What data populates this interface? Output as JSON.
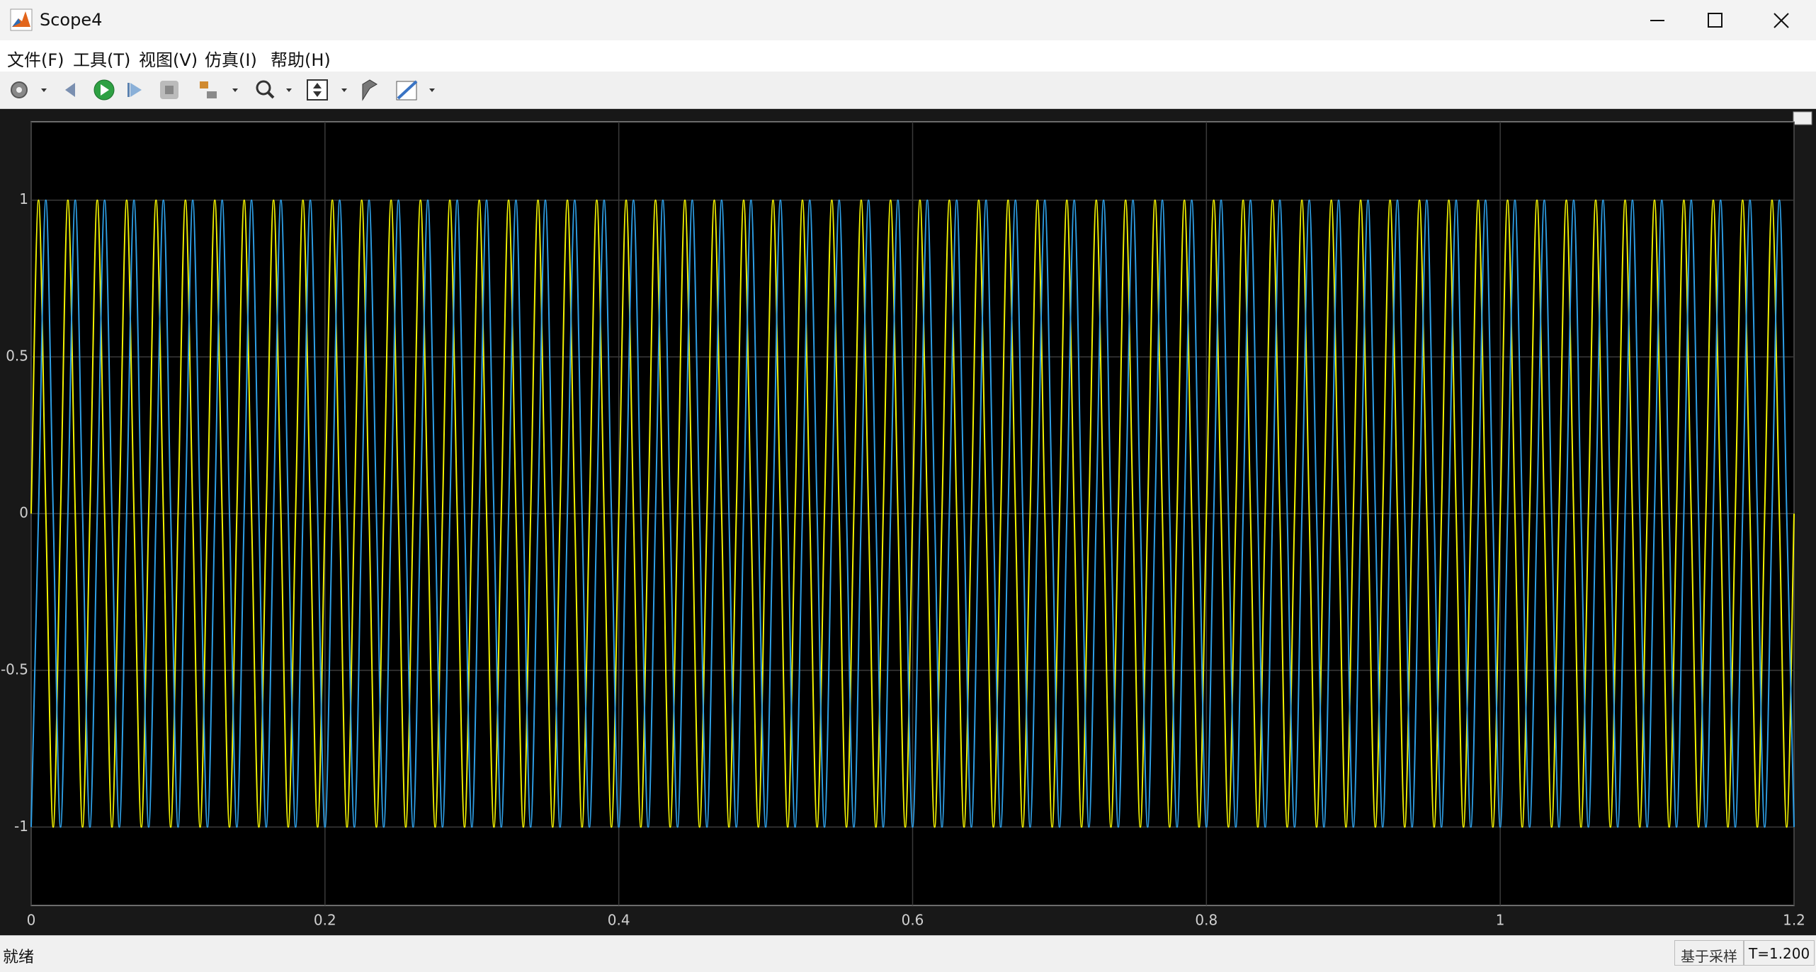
{
  "window": {
    "title": "Scope4"
  },
  "menu": [
    "文件(F)",
    "工具(T)",
    "视图(V)",
    "仿真(I)",
    "帮助(H)"
  ],
  "status": {
    "left": "就绪",
    "mode": "基于采样",
    "time": "T=1.200"
  },
  "chart_data": {
    "type": "line",
    "xlim": [
      0,
      1.2
    ],
    "xticks": [
      0,
      0.2,
      0.4,
      0.6,
      0.8,
      1,
      1.2
    ],
    "ylim": [
      -1.25,
      1.25
    ],
    "yticks": [
      -1,
      -0.5,
      0,
      0.5,
      1
    ],
    "grid": true,
    "x": [
      0,
      0.005,
      0.01,
      0.015,
      0.02,
      0.025,
      0.03,
      0.035,
      0.04,
      0.045,
      0.05,
      0.055,
      0.06,
      0.065,
      0.07,
      0.075,
      0.08,
      0.085,
      0.09,
      0.095,
      0.1,
      0.105,
      0.11,
      0.115,
      0.12,
      0.125,
      0.13,
      0.135,
      0.14,
      0.145,
      0.15,
      0.155,
      0.16,
      0.165,
      0.17,
      0.175,
      0.18,
      0.185,
      0.19,
      0.195,
      0.2,
      0.205,
      0.21,
      0.215,
      0.22,
      0.225,
      0.23,
      0.235,
      0.24,
      0.245,
      0.25,
      0.255,
      0.26,
      0.265,
      0.27,
      0.275,
      0.28,
      0.285,
      0.29,
      0.295,
      0.3,
      0.305,
      0.31,
      0.315,
      0.32,
      0.325,
      0.33,
      0.335,
      0.34,
      0.345,
      0.35,
      0.355,
      0.36,
      0.365,
      0.37,
      0.375,
      0.38,
      0.385,
      0.39,
      0.395,
      0.4,
      0.405,
      0.41,
      0.415,
      0.42,
      0.425,
      0.43,
      0.435,
      0.44,
      0.445,
      0.45,
      0.455,
      0.46,
      0.465,
      0.47,
      0.475,
      0.48,
      0.485,
      0.49,
      0.495,
      0.5,
      0.505,
      0.51,
      0.515,
      0.52,
      0.525,
      0.53,
      0.535,
      0.54,
      0.545,
      0.55,
      0.555,
      0.56,
      0.565,
      0.57,
      0.575,
      0.58,
      0.585,
      0.59,
      0.595,
      0.6,
      0.605,
      0.61,
      0.615,
      0.62,
      0.625,
      0.63,
      0.635,
      0.64,
      0.645,
      0.65,
      0.655,
      0.66,
      0.665,
      0.67,
      0.675,
      0.68,
      0.685,
      0.69,
      0.695,
      0.7,
      0.705,
      0.71,
      0.715,
      0.72,
      0.725,
      0.73,
      0.735,
      0.74,
      0.745,
      0.75,
      0.755,
      0.76,
      0.765,
      0.77,
      0.775,
      0.78,
      0.785,
      0.79,
      0.795,
      0.8,
      0.805,
      0.81,
      0.815,
      0.82,
      0.825,
      0.83,
      0.835,
      0.84,
      0.845,
      0.85,
      0.855,
      0.86,
      0.865,
      0.87,
      0.875,
      0.88,
      0.885,
      0.89,
      0.895,
      0.9,
      0.905,
      0.91,
      0.915,
      0.92,
      0.925,
      0.93,
      0.935,
      0.94,
      0.945,
      0.95,
      0.955,
      0.96,
      0.965,
      0.97,
      0.975,
      0.98,
      0.985,
      0.99,
      0.995,
      1,
      1.005,
      1.01,
      1.015,
      1.02,
      1.025,
      1.03,
      1.035,
      1.04,
      1.045,
      1.05,
      1.055,
      1.06,
      1.065,
      1.07,
      1.075,
      1.08,
      1.085,
      1.09,
      1.095,
      1.1,
      1.105,
      1.11,
      1.115,
      1.12,
      1.125,
      1.13,
      1.135,
      1.14,
      1.145,
      1.15,
      1.155,
      1.16,
      1.165,
      1.17,
      1.175,
      1.18,
      1.185,
      1.19,
      1.195,
      1.2
    ],
    "series": [
      {
        "color": "#f2f200",
        "values": [
          0,
          1,
          0,
          -1,
          0,
          1,
          0,
          -1,
          0,
          1,
          0,
          -1,
          0,
          1,
          0,
          -1,
          0,
          1,
          0,
          -1,
          0,
          1,
          0,
          -1,
          0,
          1,
          0,
          -1,
          0,
          1,
          0,
          -1,
          0,
          1,
          0,
          -1,
          0,
          1,
          0,
          -1,
          0,
          1,
          0,
          -1,
          0,
          1,
          0,
          -1,
          0,
          1,
          0,
          -1,
          0,
          1,
          0,
          -1,
          0,
          1,
          0,
          -1,
          0,
          1,
          0,
          -1,
          0,
          1,
          0,
          -1,
          0,
          1,
          0,
          -1,
          0,
          1,
          0,
          -1,
          0,
          1,
          0,
          -1,
          0,
          1,
          0,
          -1,
          0,
          1,
          0,
          -1,
          0,
          1,
          0,
          -1,
          0,
          1,
          0,
          -1,
          0,
          1,
          0,
          -1,
          0,
          1,
          0,
          -1,
          0,
          1,
          0,
          -1,
          0,
          1,
          0,
          -1,
          0,
          1,
          0,
          -1,
          0,
          1,
          0,
          -1,
          0,
          1,
          0,
          -1,
          0,
          1,
          0,
          -1,
          0,
          1,
          0,
          -1,
          0,
          1,
          0,
          -1,
          0,
          1,
          0,
          -1,
          0,
          1,
          0,
          -1,
          0,
          1,
          0,
          -1,
          0,
          1,
          0,
          -1,
          0,
          1,
          0,
          -1,
          0,
          1,
          0,
          -1,
          0,
          1,
          0,
          -1,
          0,
          1,
          0,
          -1,
          0,
          1,
          0,
          -1,
          0,
          1,
          0,
          -1,
          0,
          1,
          0,
          -1,
          0,
          1,
          0,
          -1,
          0,
          1,
          0,
          -1,
          0,
          1,
          0,
          -1,
          0,
          1,
          0,
          -1,
          0,
          1,
          0,
          -1,
          0,
          1,
          0,
          -1,
          0,
          1,
          0,
          -1,
          0,
          1,
          0,
          -1,
          0,
          1,
          0,
          -1,
          0,
          1,
          0,
          -1,
          0,
          1,
          0,
          -1,
          0,
          1,
          0,
          -1,
          0,
          1,
          0,
          -1,
          0,
          1,
          0,
          -1,
          0,
          1,
          0,
          -1,
          0
        ]
      },
      {
        "color": "#2e9fe6",
        "values": [
          -1,
          0,
          1,
          0,
          -1,
          0,
          1,
          0,
          -1,
          0,
          1,
          0,
          -1,
          0,
          1,
          0,
          -1,
          0,
          1,
          0,
          -1,
          0,
          1,
          0,
          -1,
          0,
          1,
          0,
          -1,
          0,
          1,
          0,
          -1,
          0,
          1,
          0,
          -1,
          0,
          1,
          0,
          -1,
          0,
          1,
          0,
          -1,
          0,
          1,
          0,
          -1,
          0,
          1,
          0,
          -1,
          0,
          1,
          0,
          -1,
          0,
          1,
          0,
          -1,
          0,
          1,
          0,
          -1,
          0,
          1,
          0,
          -1,
          0,
          1,
          0,
          -1,
          0,
          1,
          0,
          -1,
          0,
          1,
          0,
          -1,
          0,
          1,
          0,
          -1,
          0,
          1,
          0,
          -1,
          0,
          1,
          0,
          -1,
          0,
          1,
          0,
          -1,
          0,
          1,
          0,
          -1,
          0,
          1,
          0,
          -1,
          0,
          1,
          0,
          -1,
          0,
          1,
          0,
          -1,
          0,
          1,
          0,
          -1,
          0,
          1,
          0,
          -1,
          0,
          1,
          0,
          -1,
          0,
          1,
          0,
          -1,
          0,
          1,
          0,
          -1,
          0,
          1,
          0,
          -1,
          0,
          1,
          0,
          -1,
          0,
          1,
          0,
          -1,
          0,
          1,
          0,
          -1,
          0,
          1,
          0,
          -1,
          0,
          1,
          0,
          -1,
          0,
          1,
          0,
          -1,
          0,
          1,
          0,
          -1,
          0,
          1,
          0,
          -1,
          0,
          1,
          0,
          -1,
          0,
          1,
          0,
          -1,
          0,
          1,
          0,
          -1,
          0,
          1,
          0,
          -1,
          0,
          1,
          0,
          -1,
          0,
          1,
          0,
          -1,
          0,
          1,
          0,
          -1,
          0,
          1,
          0,
          -1,
          0,
          1,
          0,
          -1,
          0,
          1,
          0,
          -1,
          0,
          1,
          0,
          -1,
          0,
          1,
          0,
          -1,
          0,
          1,
          0,
          -1,
          0,
          1,
          0,
          -1,
          0,
          1,
          0,
          -1,
          0,
          1,
          0,
          -1,
          0,
          1,
          0,
          -1,
          0,
          1,
          0,
          -1
        ]
      }
    ]
  }
}
